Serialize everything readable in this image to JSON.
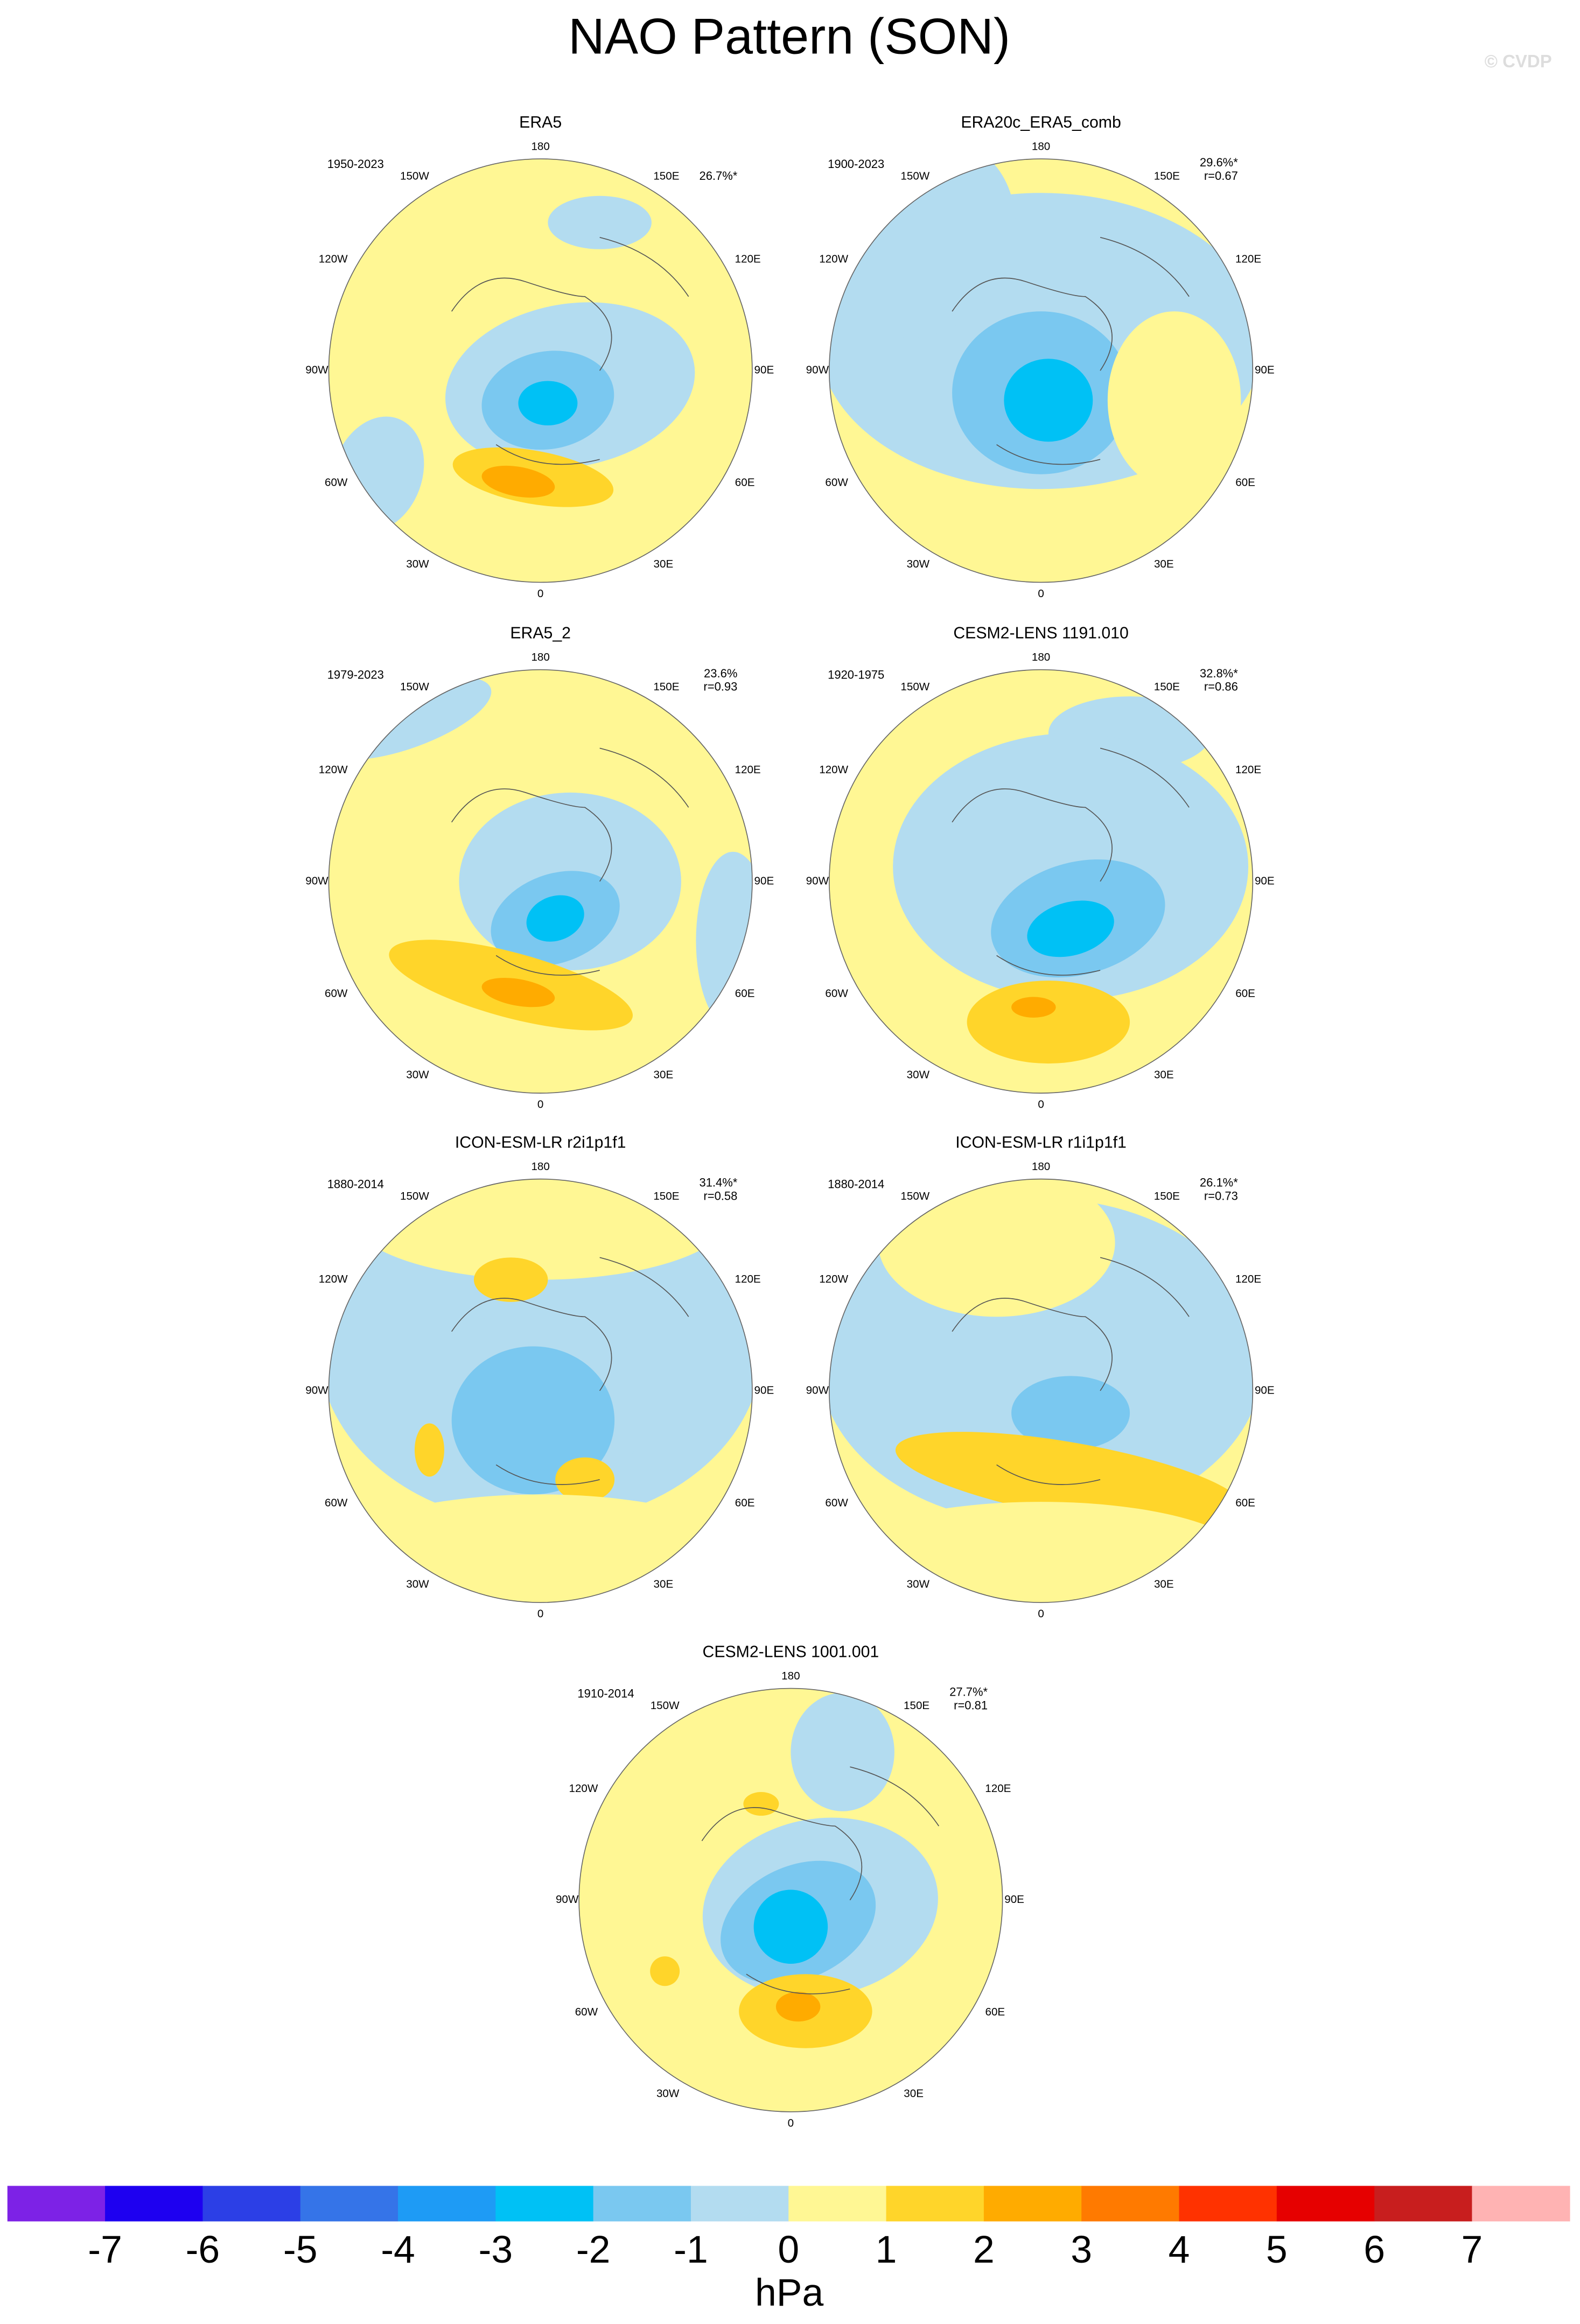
{
  "title": "NAO Pattern (SON)",
  "watermark": "© CVDP",
  "lon_labels": [
    "180",
    "150E",
    "120E",
    "90E",
    "60E",
    "30E",
    "0",
    "30W",
    "60W",
    "90W",
    "120W",
    "150W"
  ],
  "panels": [
    {
      "title": "ERA5",
      "period": "1950-2023",
      "pct": "26.7%*"
    },
    {
      "title": "ERA20c_ERA5_comb",
      "period": "1900-2023",
      "pct": "29.6%*",
      "r": "r=0.67"
    },
    {
      "title": "ERA5_2",
      "period": "1979-2023",
      "pct": "23.6%",
      "r": "r=0.93"
    },
    {
      "title": "CESM2-LENS 1191.010",
      "period": "1920-1975",
      "pct": "32.8%*",
      "r": "r=0.86"
    },
    {
      "title": "ICON-ESM-LR r2i1p1f1",
      "period": "1880-2014",
      "pct": "31.4%*",
      "r": "r=0.58"
    },
    {
      "title": "ICON-ESM-LR r1i1p1f1",
      "period": "1880-2014",
      "pct": "26.1%*",
      "r": "r=0.73"
    },
    {
      "title": "CESM2-LENS 1001.001",
      "period": "1910-2014",
      "pct": "27.7%*",
      "r": "r=0.81"
    }
  ],
  "colorbar": {
    "ticks": [
      -7,
      -6,
      -5,
      -4,
      -3,
      -2,
      -1,
      0,
      1,
      2,
      3,
      4,
      5,
      6,
      7
    ],
    "colors": [
      "#7d22e6",
      "#1e00f0",
      "#2c3fe6",
      "#3574e8",
      "#1e9bf5",
      "#00c1f5",
      "#7ac8f0",
      "#b3dcf0",
      "#fff794",
      "#ffd52a",
      "#ffab00",
      "#ff7a00",
      "#ff3200",
      "#e60000",
      "#c81e1e",
      "#ffb3b3"
    ],
    "unit": "hPa"
  }
}
